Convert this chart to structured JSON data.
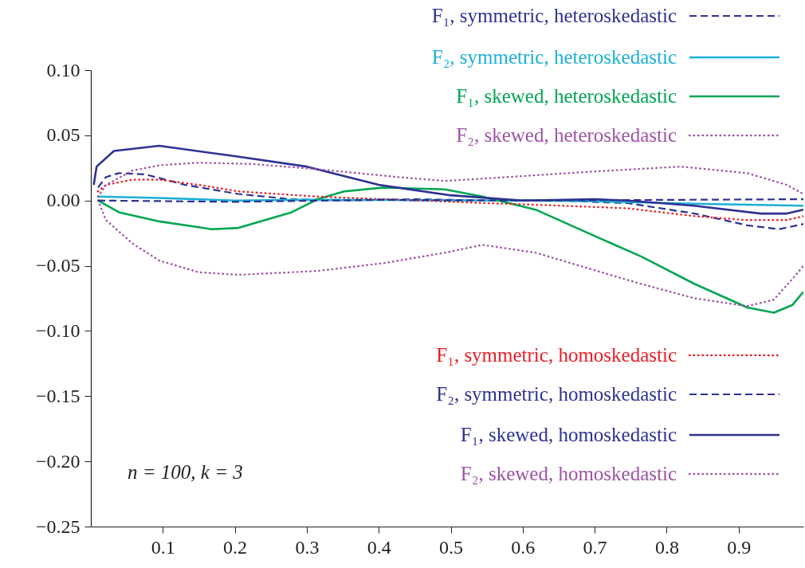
{
  "chart_data": {
    "type": "line",
    "xlim": [
      0,
      0.99
    ],
    "xticks": [
      0.1,
      0.2,
      0.3,
      0.4,
      0.5,
      0.6,
      0.7,
      0.8,
      0.9
    ],
    "ylim": [
      -0.25,
      0.1
    ],
    "yticks": [
      {
        "value": -0.25,
        "label": "−0.25"
      },
      {
        "value": -0.2,
        "label": "−0.20"
      },
      {
        "value": -0.15,
        "label": "−0.15"
      },
      {
        "value": -0.1,
        "label": "−0.10"
      },
      {
        "value": -0.05,
        "label": "−0.05"
      },
      {
        "value": 0,
        "label": "0.00"
      },
      {
        "value": 0.05,
        "label": "0.05"
      },
      {
        "value": 0.1,
        "label": "0.10"
      }
    ],
    "grid": false,
    "legend": "right",
    "annotations": [
      "n = 100, k = 3"
    ],
    "series": [
      {
        "name": "F₁, symmetric, heteroskedastic",
        "color": "#2e3192",
        "line_style": "dashed",
        "x": [
          0.01,
          0.021,
          0.039,
          0.076,
          0.131,
          0.205,
          0.279,
          0.352,
          0.45,
          0.55,
          0.65,
          0.746,
          0.839,
          0.912,
          0.956,
          0.99
        ],
        "values": [
          0.01,
          0.018,
          0.021,
          0.02,
          0.012,
          0.005,
          0.001,
          0.0,
          0.001,
          0.0,
          0.0,
          -0.002,
          -0.01,
          -0.019,
          -0.022,
          -0.018
        ]
      },
      {
        "name": "F₂, symmetric, heteroskedastic",
        "color": "#1ab0d6",
        "line_style": "solid",
        "x": [
          0.01,
          0.095,
          0.2,
          0.3,
          0.4,
          0.5,
          0.6,
          0.7,
          0.839,
          0.99
        ],
        "values": [
          0.003,
          0.002,
          0.0,
          0.0005,
          0.0005,
          0.0,
          0.0,
          -0.0005,
          -0.0025,
          -0.004
        ]
      },
      {
        "name": "F₁, skewed, heteroskedastic",
        "color": "#00a651",
        "line_style": "solid",
        "x": [
          0.01,
          0.039,
          0.095,
          0.168,
          0.205,
          0.279,
          0.315,
          0.352,
          0.407,
          0.492,
          0.544,
          0.618,
          0.691,
          0.765,
          0.839,
          0.912,
          0.949,
          0.975,
          0.99
        ],
        "values": [
          0.0,
          -0.009,
          -0.016,
          -0.022,
          -0.021,
          -0.009,
          0.001,
          0.007,
          0.01,
          0.0085,
          0.003,
          -0.007,
          -0.025,
          -0.043,
          -0.064,
          -0.082,
          -0.086,
          -0.08,
          -0.07
        ]
      },
      {
        "name": "F₂, skewed, heteroskedastic",
        "color": "#9e54a6",
        "line_style": "dotted",
        "x": [
          0.01,
          0.021,
          0.058,
          0.095,
          0.15,
          0.205,
          0.315,
          0.407,
          0.492,
          0.544,
          0.618,
          0.691,
          0.765,
          0.839,
          0.912,
          0.949,
          0.978,
          0.99
        ],
        "values": [
          0.0,
          -0.015,
          -0.033,
          -0.046,
          -0.055,
          -0.057,
          -0.054,
          -0.048,
          -0.04,
          -0.034,
          -0.04,
          -0.052,
          -0.064,
          -0.075,
          -0.081,
          -0.076,
          -0.058,
          -0.05
        ]
      },
      {
        "name": "F₁, symmetric, homoskedastic",
        "color": "#ed1c24",
        "line_style": "dotted",
        "x": [
          0.01,
          0.021,
          0.058,
          0.095,
          0.15,
          0.205,
          0.315,
          0.426,
          0.55,
          0.655,
          0.746,
          0.839,
          0.912,
          0.967,
          0.99
        ],
        "values": [
          0.007,
          0.012,
          0.016,
          0.016,
          0.012,
          0.007,
          0.003,
          0.0006,
          -0.002,
          -0.004,
          -0.006,
          -0.012,
          -0.015,
          -0.015,
          -0.012
        ]
      },
      {
        "name": "F₂, symmetric, homoskedastic",
        "color": "#2e3192",
        "line_style": "dashed",
        "x": [
          0.01,
          0.2,
          0.4,
          0.6,
          0.8,
          0.99
        ],
        "values": [
          0.0,
          -0.001,
          0.0005,
          0.0,
          0.0005,
          0.001
        ]
      },
      {
        "name": "F₁, skewed, homoskedastic",
        "color": "#2e3192",
        "line_style": "solid",
        "x": [
          0.004,
          0.008,
          0.032,
          0.095,
          0.2,
          0.3,
          0.4,
          0.5,
          0.6,
          0.7,
          0.746,
          0.838,
          0.931,
          0.967,
          0.99
        ],
        "values": [
          0.012,
          0.026,
          0.038,
          0.042,
          0.034,
          0.026,
          0.012,
          0.004,
          0.0,
          0.001,
          0.0,
          -0.004,
          -0.01,
          -0.01,
          -0.007
        ]
      },
      {
        "name": "F₂, skewed, homoskedastic",
        "color": "#9e54a6",
        "line_style": "dotted",
        "x": [
          0.01,
          0.021,
          0.058,
          0.095,
          0.15,
          0.224,
          0.315,
          0.426,
          0.492,
          0.58,
          0.691,
          0.82,
          0.912,
          0.967,
          0.99
        ],
        "values": [
          0.003,
          0.012,
          0.023,
          0.027,
          0.029,
          0.028,
          0.024,
          0.018,
          0.015,
          0.018,
          0.022,
          0.026,
          0.021,
          0.012,
          0.005
        ]
      }
    ]
  }
}
